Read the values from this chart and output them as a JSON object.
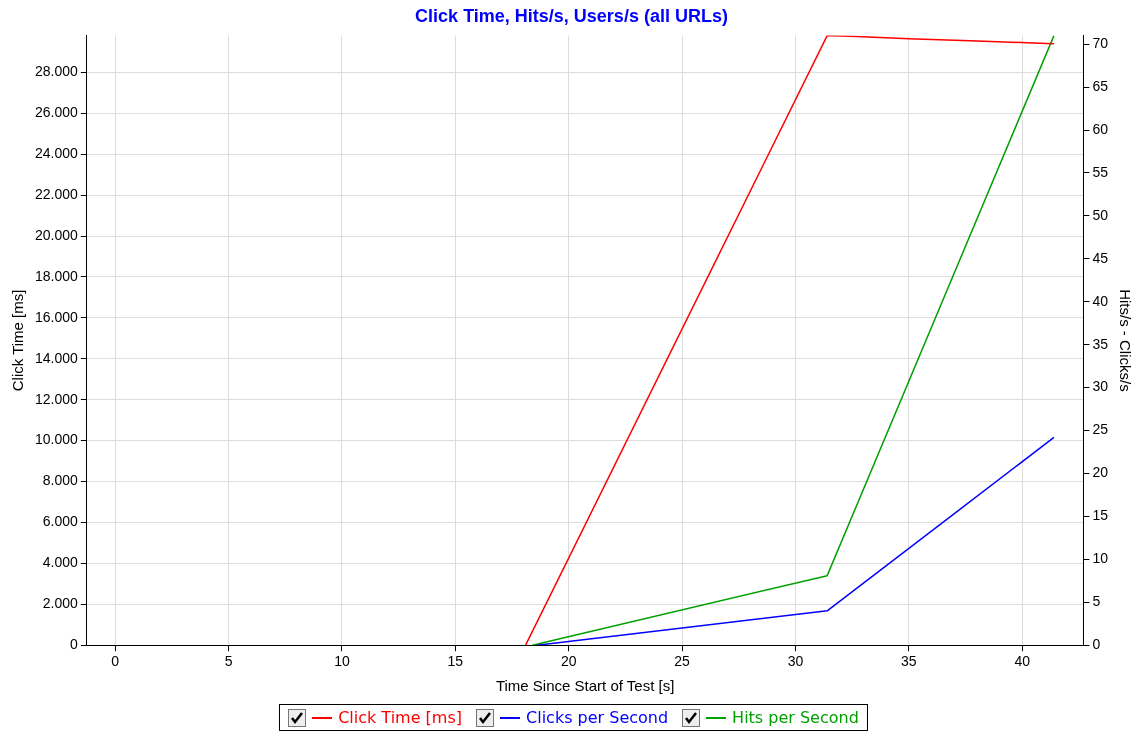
{
  "chart_data": {
    "type": "line",
    "title": "Click Time, Hits/s, Users/s (all URLs)",
    "xlabel": "Time Since Start of Test [s]",
    "ylabel": "Click Time [ms]",
    "y2label": "Hits/s - Clicks/s",
    "series": [
      {
        "name": "Click Time [ms]",
        "color": "#ff0000",
        "x": [
          18.1,
          31.4,
          32.7,
          35,
          37.7,
          40.2,
          41.4
        ],
        "values": [
          0,
          29800,
          29750,
          29650,
          29550,
          29450,
          29400
        ]
      },
      {
        "name": "Clicks per Second",
        "color": "#0000ff",
        "axis": "y2",
        "x": [
          18.6,
          31.4,
          41.4
        ],
        "values": [
          0,
          4,
          24.2
        ]
      },
      {
        "name": "Hits per Second",
        "color": "#00a000",
        "axis": "y2",
        "x": [
          18.4,
          31.4,
          41.4
        ],
        "values": [
          0,
          8.1,
          71
        ]
      }
    ],
    "xlim": [
      -1.25,
      42.7
    ],
    "xticks": [
      0,
      5,
      10,
      15,
      20,
      25,
      30,
      35,
      40
    ],
    "ylim": [
      0,
      29800
    ],
    "yticks": [
      0,
      {
        "value": 2000,
        "label": "2.000"
      },
      {
        "value": 4000,
        "label": "4.000"
      },
      {
        "value": 6000,
        "label": "6.000"
      },
      {
        "value": 8000,
        "label": "8.000"
      },
      {
        "value": 10000,
        "label": "10.000"
      },
      {
        "value": 12000,
        "label": "12.000"
      },
      {
        "value": 14000,
        "label": "14.000"
      },
      {
        "value": 16000,
        "label": "16.000"
      },
      {
        "value": 18000,
        "label": "18.000"
      },
      {
        "value": 20000,
        "label": "20.000"
      },
      {
        "value": 22000,
        "label": "22.000"
      },
      {
        "value": 24000,
        "label": "24.000"
      },
      {
        "value": 26000,
        "label": "26.000"
      },
      {
        "value": 28000,
        "label": "28.000"
      }
    ],
    "y2lim": [
      0,
      71
    ],
    "y2ticks": [
      0,
      5,
      10,
      15,
      20,
      25,
      30,
      35,
      40,
      45,
      50,
      55,
      60,
      65,
      70
    ],
    "grid": true,
    "legend": "bottom",
    "marker": "none",
    "line_style": "solid"
  }
}
